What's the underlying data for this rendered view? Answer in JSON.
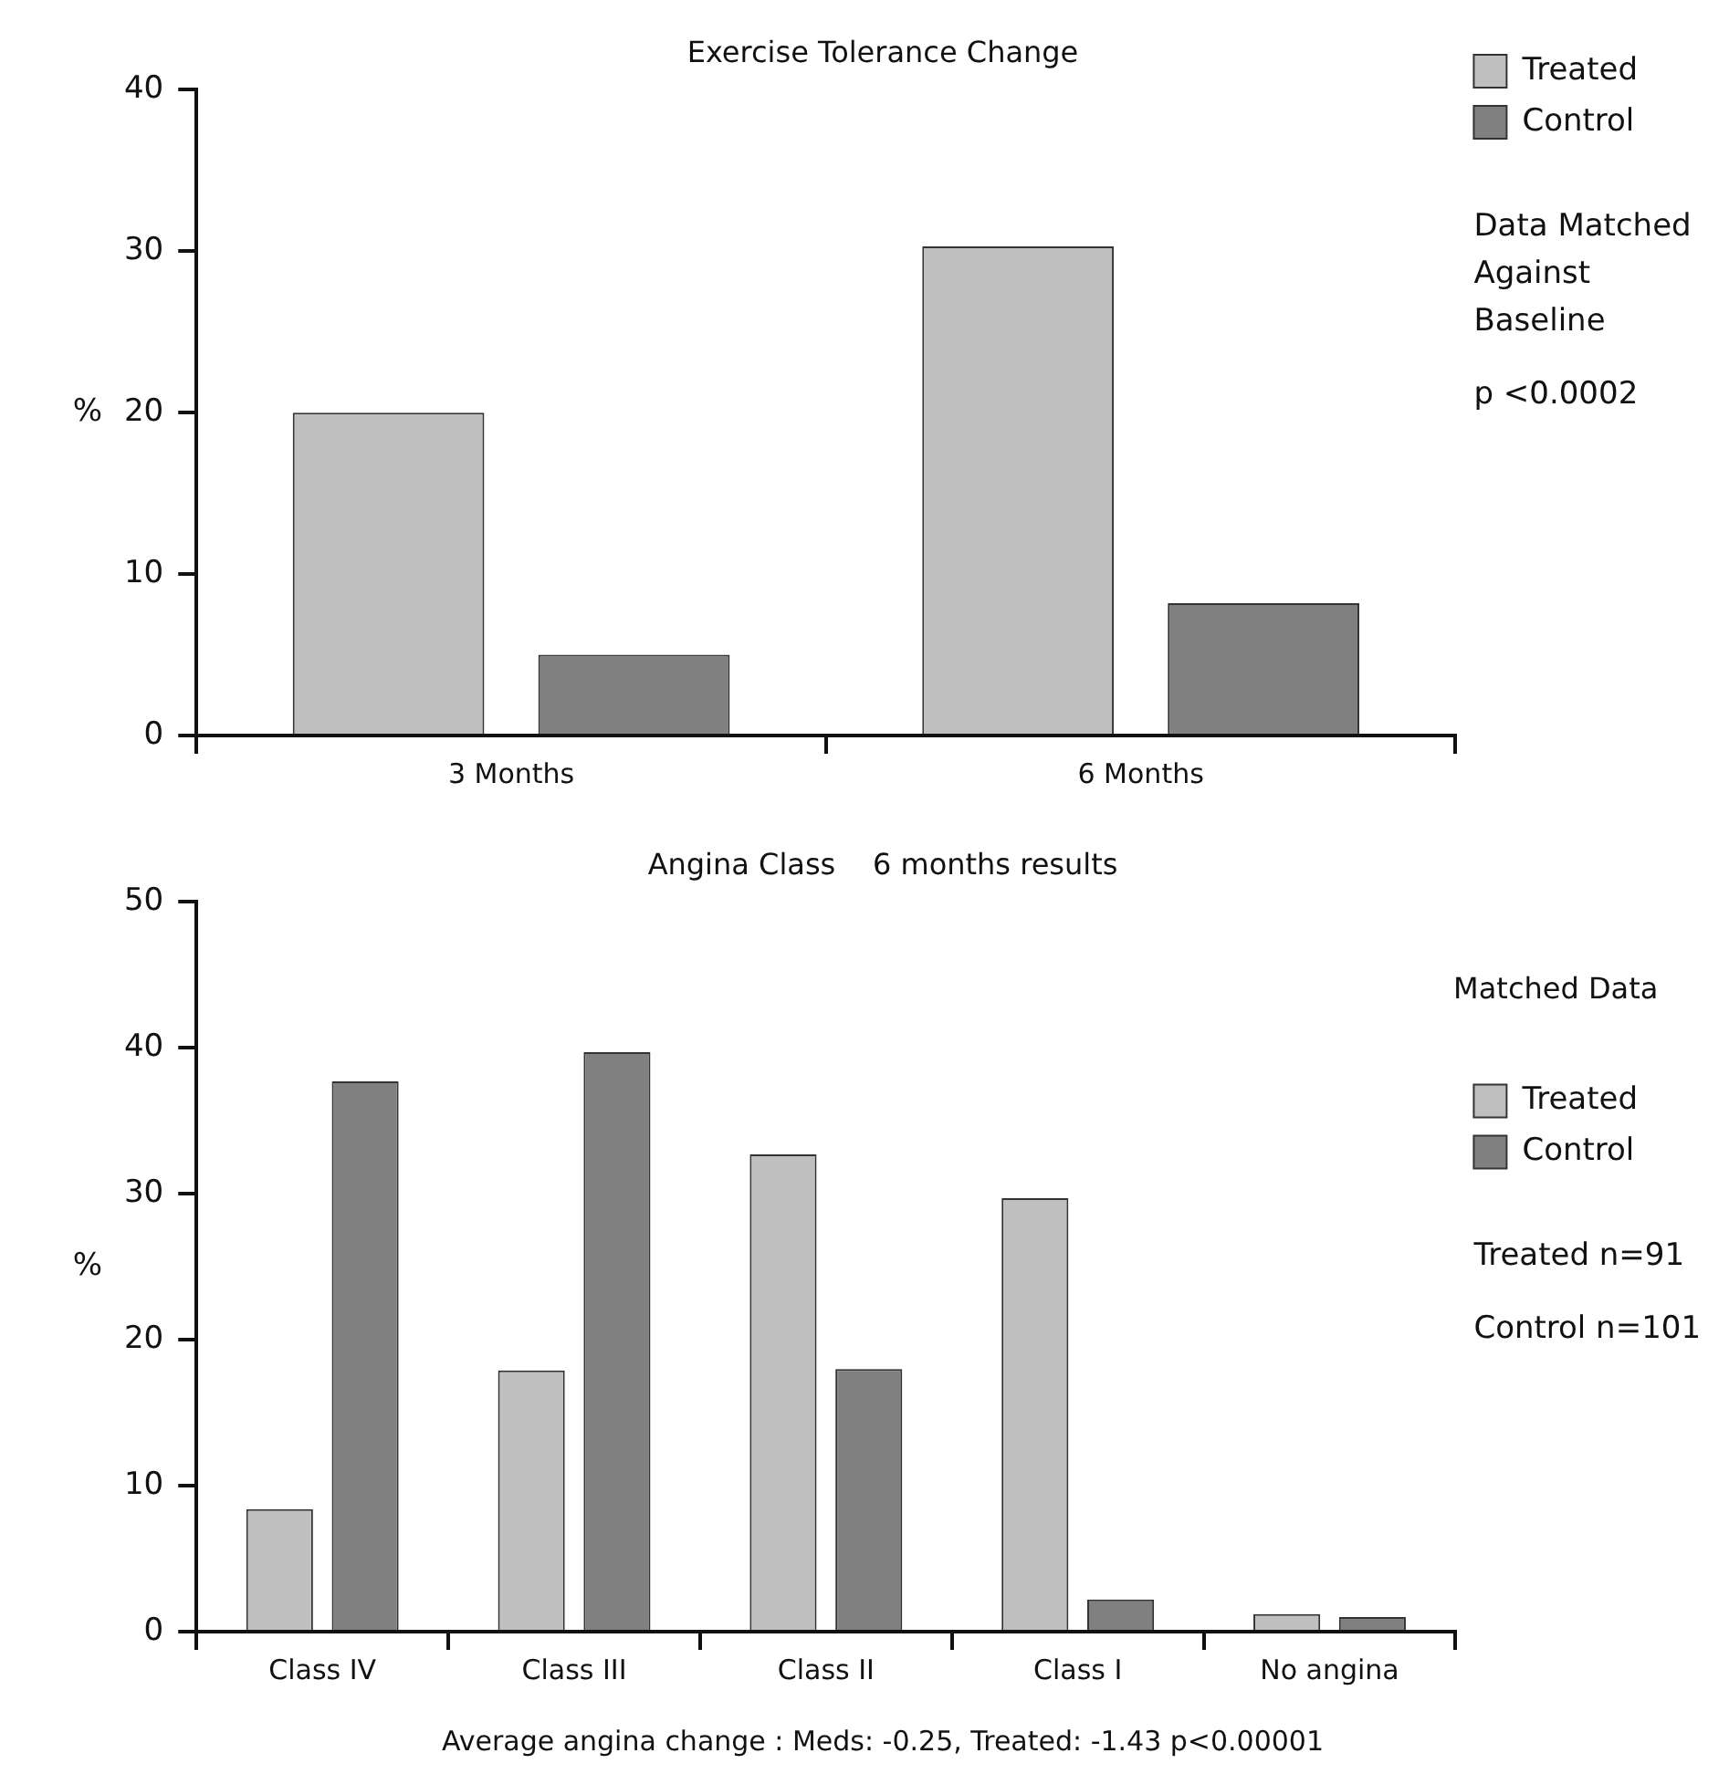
{
  "chart_data": [
    {
      "type": "bar",
      "title": "Exercise Tolerance Change",
      "ylabel": "%",
      "categories": [
        "3 Months",
        "6 Months"
      ],
      "series": [
        {
          "name": "Treated",
          "color": "#bfbfbf",
          "values": [
            20,
            30.3
          ]
        },
        {
          "name": "Control",
          "color": "#808080",
          "values": [
            5,
            8.2
          ]
        }
      ],
      "ylim": [
        0,
        40
      ],
      "yticks": [
        0,
        10,
        20,
        30,
        40
      ],
      "grid": false,
      "legend": "right",
      "annotations": [
        "Data Matched Against Baseline",
        "p <0.0002"
      ]
    },
    {
      "type": "bar",
      "title": "Angina Class    6 months results",
      "ylabel": "%",
      "legend_title": "Matched Data",
      "categories": [
        "Class IV",
        "Class III",
        "Class II",
        "Class I",
        "No angina"
      ],
      "series": [
        {
          "name": "Treated",
          "color": "#bfbfbf",
          "values": [
            8.4,
            17.9,
            32.7,
            29.7,
            1.2
          ]
        },
        {
          "name": "Control",
          "color": "#808080",
          "values": [
            37.7,
            39.7,
            18,
            2.2,
            1
          ]
        }
      ],
      "ylim": [
        0,
        50
      ],
      "yticks": [
        0,
        10,
        20,
        30,
        40,
        50
      ],
      "grid": false,
      "legend": "right",
      "subtitle": "Average angina change : Meds: -0.25, Treated: -1.43 p<0.00001",
      "annotations": [
        "Treated n=91",
        "Control n=101"
      ]
    }
  ]
}
